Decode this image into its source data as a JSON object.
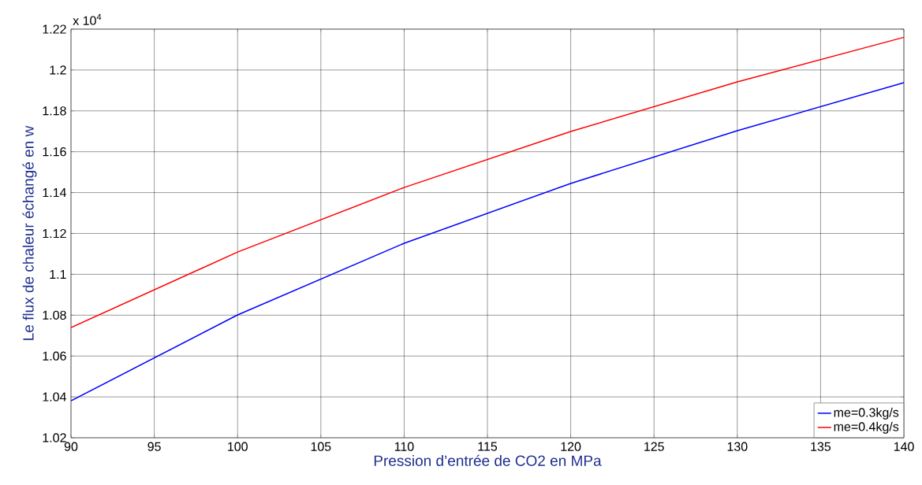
{
  "chart_data": {
    "type": "line",
    "xlabel": "Pression d’entrée de CO2 en MPa",
    "ylabel": "Le flux de chaleur échangé en w",
    "annotations": [
      "x 10$^{4}$"
    ],
    "x": [
      90,
      100,
      110,
      120,
      130,
      140
    ],
    "series": [
      {
        "name": "me=0.3kg/s",
        "color": "#0000ff",
        "values": [
          1.0381,
          1.0801,
          1.1152,
          1.1445,
          1.1703,
          1.1938
        ]
      },
      {
        "name": "me=0.4kg/s",
        "color": "#ff0000",
        "values": [
          1.0739,
          1.1109,
          1.1425,
          1.1699,
          1.1942,
          1.216
        ]
      }
    ],
    "xlim": [
      90,
      140
    ],
    "ylim": [
      1.02,
      1.22
    ],
    "xticks": [
      90,
      95,
      100,
      105,
      110,
      115,
      120,
      125,
      130,
      135,
      140
    ],
    "yticks": [
      1.02,
      1.04,
      1.06,
      1.08,
      1.1,
      1.12,
      1.14,
      1.16,
      1.18,
      1.2,
      1.22
    ],
    "grid": true,
    "legend": "bottom right",
    "marker": "none",
    "line_style": "solid"
  }
}
